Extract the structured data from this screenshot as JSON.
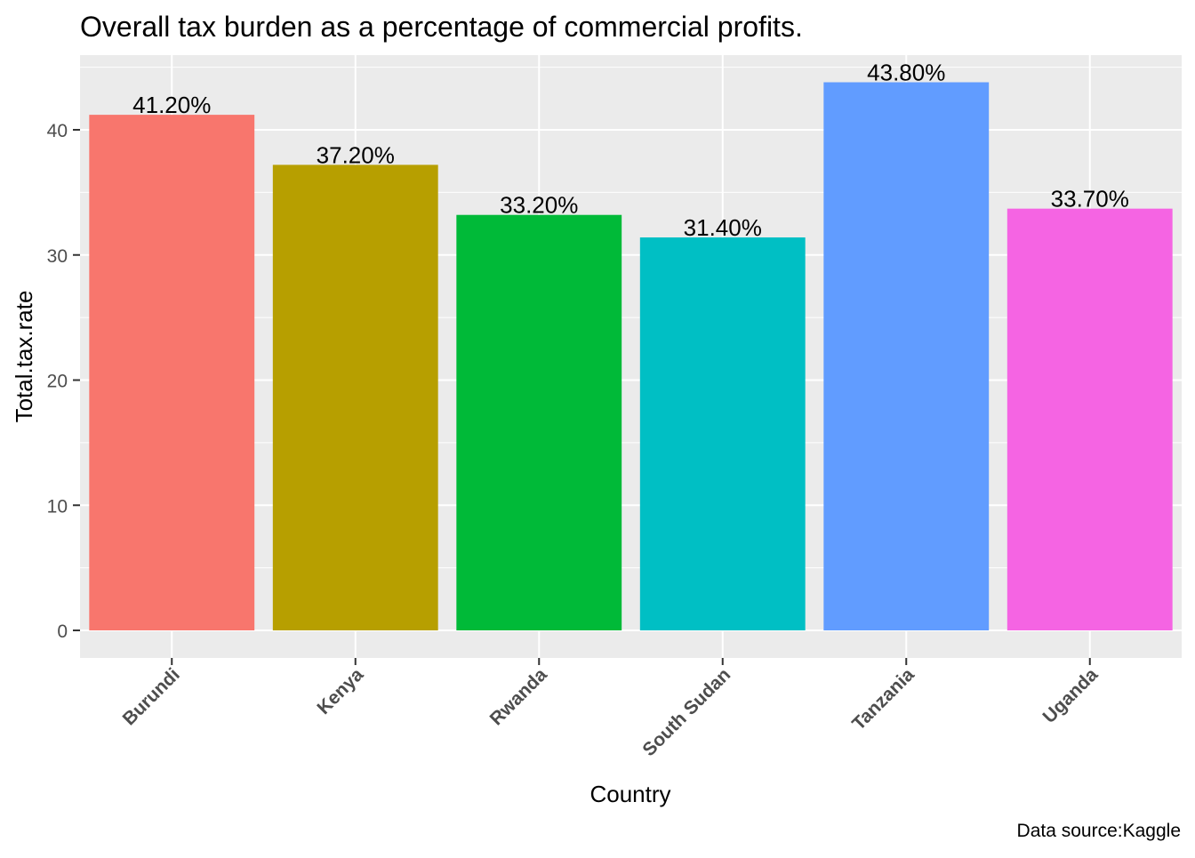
{
  "chart_data": {
    "type": "bar",
    "title": "Overall tax burden as a percentage of commercial profits.",
    "xlabel": "Country",
    "ylabel": "Total.tax.rate",
    "caption": "Data source:Kaggle",
    "categories": [
      "Burundi",
      "Kenya",
      "Rwanda",
      "South Sudan",
      "Tanzania",
      "Uganda"
    ],
    "values": [
      41.2,
      37.2,
      33.2,
      31.4,
      43.8,
      33.7
    ],
    "data_labels": [
      "41.20%",
      "37.20%",
      "33.20%",
      "31.40%",
      "43.80%",
      "33.70%"
    ],
    "colors": [
      "#F8766D",
      "#B79F00",
      "#00BA38",
      "#00BFC4",
      "#619CFF",
      "#F564E3"
    ],
    "yticks": [
      0,
      10,
      20,
      30,
      40
    ],
    "ytick_labels": [
      "0",
      "10",
      "20",
      "30",
      "40"
    ],
    "ylim": [
      -2.2,
      46.0
    ],
    "grid": true,
    "legend": "none",
    "panel_background": "#EBEBEB"
  }
}
